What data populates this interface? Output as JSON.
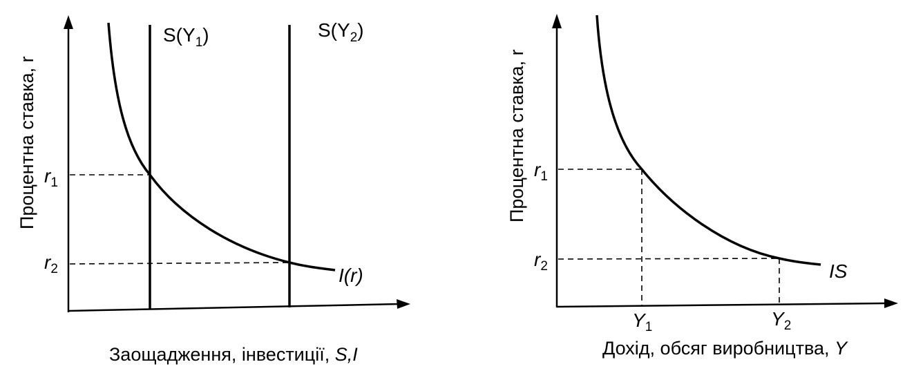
{
  "left_panel": {
    "y_axis_title": "Процентна ставка, r",
    "x_axis_title_text": "Заощадження, інвестиції, ",
    "x_axis_title_symbol": "S,I",
    "tick_r1": {
      "symbol": "r",
      "sub": "1"
    },
    "tick_r2": {
      "symbol": "r",
      "sub": "2"
    },
    "label_s1": {
      "pre": "S(Y",
      "sub": "1",
      "post": ")"
    },
    "label_s2": {
      "pre": "S(Y",
      "sub": "2",
      "post": ")"
    },
    "label_investment": "I(r)"
  },
  "right_panel": {
    "y_axis_title": "Процентна ставка, r",
    "x_axis_title_text": "Дохід, обсяг виробництва, ",
    "x_axis_title_symbol": "Y",
    "tick_r1": {
      "symbol": "r",
      "sub": "1"
    },
    "tick_r2": {
      "symbol": "r",
      "sub": "2"
    },
    "tick_y1": {
      "symbol": "Y",
      "sub": "1"
    },
    "tick_y2": {
      "symbol": "Y",
      "sub": "2"
    },
    "label_curve": "IS"
  },
  "colors": {
    "ink": "#000000",
    "background": "#ffffff"
  }
}
